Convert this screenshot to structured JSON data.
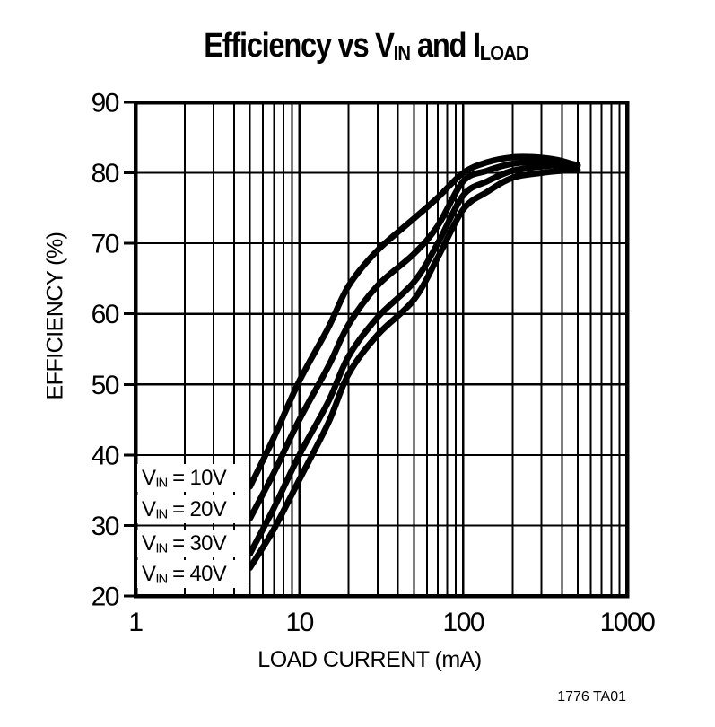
{
  "title": {
    "part1": "Efficiency vs V",
    "sub1": "IN",
    "part2": " and I",
    "sub2": "LOAD"
  },
  "axes": {
    "x_label": "LOAD CURRENT (mA)",
    "y_label": "EFFICIENCY (%)"
  },
  "legend": {
    "items": [
      {
        "prefix": "V",
        "sub": "IN",
        "rest": " = 10V"
      },
      {
        "prefix": "V",
        "sub": "IN",
        "rest": " = 20V"
      },
      {
        "prefix": "V",
        "sub": "IN",
        "rest": " = 30V"
      },
      {
        "prefix": "V",
        "sub": "IN",
        "rest": " = 40V"
      }
    ]
  },
  "credit": "1776 TA01",
  "colors": {
    "ink": "#000000",
    "background": "#ffffff"
  },
  "chart_data": {
    "type": "line",
    "title": "Efficiency vs VIN and ILOAD",
    "xlabel": "LOAD CURRENT (mA)",
    "ylabel": "EFFICIENCY (%)",
    "x_scale": "log",
    "xlim": [
      1,
      1000
    ],
    "ylim": [
      20,
      90
    ],
    "x_ticks": [
      1,
      10,
      100,
      1000
    ],
    "y_ticks": [
      20,
      30,
      40,
      50,
      60,
      70,
      80,
      90
    ],
    "grid": "log minor vertical lines each decade; horizontal lines every 10%",
    "legend_position": "inside lower-left",
    "series": [
      {
        "name": "VIN = 10V",
        "points": [
          [
            5,
            35.5
          ],
          [
            7,
            42.5
          ],
          [
            10,
            50.5
          ],
          [
            15,
            58
          ],
          [
            20,
            64
          ],
          [
            30,
            69
          ],
          [
            50,
            73.5
          ],
          [
            70,
            76.5
          ],
          [
            100,
            80
          ],
          [
            140,
            81.5
          ],
          [
            200,
            82.2
          ],
          [
            280,
            82.2
          ],
          [
            380,
            81.8
          ],
          [
            470,
            81.2
          ]
        ]
      },
      {
        "name": "VIN = 20V",
        "points": [
          [
            5,
            31
          ],
          [
            7,
            37.5
          ],
          [
            10,
            45
          ],
          [
            15,
            52.5
          ],
          [
            20,
            58.5
          ],
          [
            30,
            64
          ],
          [
            50,
            68.5
          ],
          [
            70,
            72.5
          ],
          [
            100,
            78.8
          ],
          [
            140,
            80.3
          ],
          [
            200,
            81.3
          ],
          [
            300,
            81.6
          ],
          [
            400,
            81.5
          ],
          [
            500,
            81.1
          ]
        ]
      },
      {
        "name": "VIN = 30V",
        "points": [
          [
            5,
            26
          ],
          [
            7,
            32.5
          ],
          [
            10,
            40
          ],
          [
            15,
            47.5
          ],
          [
            20,
            54
          ],
          [
            30,
            59.5
          ],
          [
            50,
            64.5
          ],
          [
            70,
            70
          ],
          [
            100,
            76.8
          ],
          [
            140,
            78.8
          ],
          [
            200,
            80.3
          ],
          [
            300,
            80.9
          ],
          [
            400,
            81.1
          ],
          [
            500,
            81.0
          ]
        ]
      },
      {
        "name": "VIN = 40V",
        "points": [
          [
            5,
            24
          ],
          [
            7,
            29.5
          ],
          [
            10,
            36.5
          ],
          [
            15,
            44.5
          ],
          [
            20,
            51.5
          ],
          [
            30,
            57
          ],
          [
            50,
            62
          ],
          [
            70,
            68
          ],
          [
            100,
            74.8
          ],
          [
            140,
            77.3
          ],
          [
            200,
            79.3
          ],
          [
            300,
            80
          ],
          [
            400,
            80.3
          ],
          [
            500,
            80.4
          ]
        ]
      }
    ]
  }
}
